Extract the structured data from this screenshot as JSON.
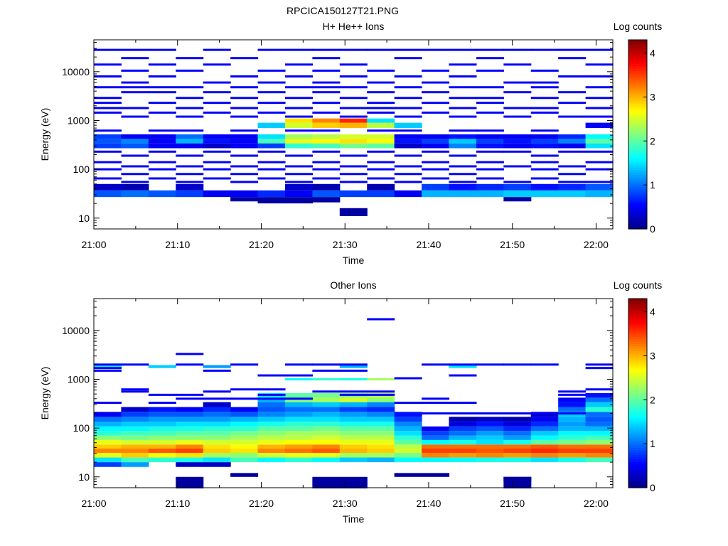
{
  "figure": {
    "title": "RPCICA150127T21.PNG"
  },
  "chart_data": [
    {
      "type": "heatmap",
      "title": "H+ He++ Ions",
      "xlabel": "Time",
      "ylabel": "Energy (eV)",
      "x_ticks": [
        "21:00",
        "21:10",
        "21:20",
        "21:30",
        "21:40",
        "21:50",
        "22:00"
      ],
      "y_ticks": [
        "10",
        "100",
        "1000",
        "10000"
      ],
      "ylim": [
        6,
        45000
      ],
      "yscale": "log",
      "colorbar": {
        "label": "Log counts",
        "min": 0,
        "max": 4.3,
        "ticks": [
          "0",
          "1",
          "2",
          "3",
          "4"
        ]
      },
      "time_bins": 19,
      "bands": [
        [
          27,
          37,
          [
            0.9,
            1.0,
            0.9,
            0.8,
            0.5,
            0.5,
            0.7,
            0.5,
            0.9,
            0.8,
            0.8,
            0.5,
            1.3,
            1.3,
            1.3,
            1.4,
            1.4,
            1.4,
            1.3
          ]
        ],
        [
          37,
          50,
          [
            0.3,
            0.2,
            0,
            0.3,
            0,
            0,
            0,
            0.3,
            0.2,
            0,
            0.2,
            0,
            0.8,
            0.6,
            0.7,
            0.8,
            0.6,
            0.7,
            0.9
          ]
        ],
        [
          270,
          340,
          [
            0.8,
            0.9,
            0.5,
            0.5,
            0.3,
            0.5,
            0.8,
            1.8,
            1.9,
            2.1,
            2.0,
            0.3,
            0.5,
            1.1,
            0.6,
            0.5,
            0.6,
            0.5,
            1.5
          ]
        ],
        [
          340,
          420,
          [
            0.9,
            1.1,
            0.5,
            1.3,
            0.6,
            0.5,
            1.9,
            2.6,
            2.7,
            2.8,
            2.7,
            0.6,
            0.8,
            1.4,
            0.8,
            0.6,
            0.8,
            1.1,
            2.0
          ]
        ],
        [
          420,
          520,
          [
            0.8,
            0.5,
            0.5,
            1.0,
            0.5,
            0.5,
            1.5,
            2.3,
            2.4,
            2.5,
            2.5,
            0.5,
            0.5,
            0.6,
            0.5,
            0.5,
            0.5,
            0.7,
            1.6
          ]
        ],
        [
          700,
          900,
          [
            0,
            0,
            0,
            0,
            0,
            0,
            1.4,
            2.5,
            2.9,
            3.0,
            2.4,
            1.4,
            0,
            0,
            0,
            0,
            0,
            0,
            0.5
          ]
        ],
        [
          900,
          1100,
          [
            0,
            0,
            0,
            0,
            0,
            0,
            0,
            2.8,
            3.2,
            3.6,
            1.5,
            0,
            0,
            0,
            0,
            0,
            0,
            0,
            0
          ]
        ]
      ],
      "lines": [
        [
          [
            28000,
            "0,1,2,4,6,7,8,9,10,11,12,13,14,15,16,17,18"
          ],
          [
            19000,
            "1,3,5,8,11,14,17"
          ],
          [
            14000,
            "0,2,4,7,9,13,15,18"
          ],
          [
            10500,
            "1,3,6,8,10,12,14,16"
          ],
          [
            8000,
            "0,2,5,7,9,11,13,17,18"
          ],
          [
            6000,
            "1,4,6,8,10,12,15,16"
          ],
          [
            4800,
            "0,1,2,3,5,7,8,9,11,13,14,16,18"
          ],
          [
            3800,
            "1,2,4,6,8,10,12,15,17"
          ],
          [
            2900,
            "0,3,5,7,9,11,13,14,16,18"
          ],
          [
            2300,
            "0,2,4,6,8,10,12,14,17"
          ],
          [
            1800,
            "0,1,3,5,7,9,10,11,13,15,16,18"
          ],
          [
            1450,
            "0,2,4,6,8,10,12,14,16"
          ],
          [
            1200,
            "1,3,5,7,9,11,13,15,17,18"
          ],
          [
            620,
            "0,2,3,5,7,8,10,11,13,14,16"
          ],
          [
            230,
            "0,2,4,6,8,10,12,14,15,17,18"
          ],
          [
            190,
            "1,3,5,7,9,11,13,16"
          ],
          [
            140,
            "0,2,4,6,8,10,12,14,16,18"
          ],
          [
            115,
            "1,3,5,7,9,11,13,15,17"
          ],
          [
            100,
            "0,2,4,6,8,10,12,14,16,18"
          ],
          [
            80,
            "1,3,5,7,9,11,13,17"
          ],
          [
            65,
            "0,2,4,6,8,10,12,14,16"
          ],
          [
            55,
            "1,3,5,7,9,11,13,15,17,18"
          ]
        ],
        [
          [
            21,
            27,
            "8"
          ],
          [
            20,
            27,
            "6,7"
          ],
          [
            11,
            16,
            "9"
          ],
          [
            22,
            27,
            "5,15"
          ]
        ]
      ]
    },
    {
      "type": "heatmap",
      "title": "Other Ions",
      "xlabel": "Time",
      "ylabel": "Energy (eV)",
      "x_ticks": [
        "21:00",
        "21:10",
        "21:20",
        "21:30",
        "21:40",
        "21:50",
        "22:00"
      ],
      "y_ticks": [
        "10",
        "100",
        "1000",
        "10000"
      ],
      "ylim": [
        6,
        45000
      ],
      "yscale": "log",
      "colorbar": {
        "label": "Log counts",
        "min": 0,
        "max": 4.3,
        "ticks": [
          "0",
          "1",
          "2",
          "3",
          "4"
        ]
      },
      "time_bins": 19,
      "bands": [
        [
          16,
          20,
          [
            0.8,
            1.2,
            0,
            0.3,
            0.3,
            0,
            0,
            0,
            0,
            0,
            0,
            0,
            0,
            0,
            0,
            0,
            0,
            0,
            0
          ]
        ],
        [
          20,
          25,
          [
            1.5,
            1.9,
            1.8,
            1.7,
            1.5,
            1.9,
            1.6,
            1.8,
            1.6,
            1.4,
            1.3,
            1.6,
            1.6,
            1.6,
            1.7,
            1.7,
            1.5,
            1.7,
            1.9
          ]
        ],
        [
          25,
          31,
          [
            2.6,
            2.9,
            2.7,
            2.8,
            2.3,
            2.2,
            2.5,
            2.6,
            2.6,
            2.3,
            2.3,
            2.1,
            3.2,
            3.1,
            3.2,
            3.1,
            3.2,
            3.1,
            3.2
          ]
        ],
        [
          31,
          38,
          [
            3.2,
            3.2,
            3.4,
            3.5,
            2.9,
            2.8,
            3.2,
            3.3,
            3.4,
            3.0,
            2.9,
            2.5,
            3.5,
            3.5,
            3.4,
            3.5,
            3.6,
            3.5,
            3.5
          ]
        ],
        [
          38,
          46,
          [
            2.9,
            3.0,
            3.0,
            3.2,
            2.8,
            2.7,
            3.0,
            3.1,
            3.2,
            2.9,
            2.8,
            2.4,
            3.3,
            3.3,
            3.3,
            3.3,
            3.4,
            3.3,
            3.3
          ]
        ],
        [
          46,
          57,
          [
            2.6,
            2.5,
            2.5,
            2.6,
            2.5,
            2.5,
            2.6,
            2.7,
            2.7,
            2.6,
            2.6,
            2.0,
            1.6,
            1.7,
            1.5,
            1.7,
            2.0,
            2.1,
            2.2
          ]
        ],
        [
          57,
          70,
          [
            2.2,
            2.1,
            2.2,
            2.2,
            2.2,
            2.3,
            2.4,
            2.4,
            2.5,
            2.4,
            2.4,
            1.8,
            1.0,
            1.3,
            1.4,
            1.2,
            1.6,
            1.8,
            1.9
          ]
        ],
        [
          70,
          87,
          [
            1.8,
            1.9,
            1.9,
            2.0,
            2.0,
            2.1,
            2.2,
            2.3,
            2.3,
            2.2,
            2.2,
            1.5,
            0.8,
            1.0,
            1.2,
            1.0,
            1.4,
            1.6,
            1.6
          ]
        ],
        [
          87,
          108,
          [
            1.6,
            1.6,
            1.7,
            1.7,
            1.8,
            1.8,
            2.0,
            2.0,
            2.1,
            2.0,
            2.0,
            1.3,
            0.5,
            0.8,
            0.9,
            0.7,
            1.0,
            1.3,
            1.3
          ]
        ],
        [
          108,
          135,
          [
            1.3,
            1.4,
            1.4,
            1.5,
            1.5,
            1.6,
            1.7,
            1.8,
            1.8,
            1.7,
            1.7,
            1.1,
            0,
            0.4,
            0.6,
            0.4,
            0.7,
            1.2,
            1.0
          ]
        ],
        [
          135,
          170,
          [
            1.0,
            1.1,
            1.2,
            1.2,
            1.2,
            1.3,
            1.4,
            1.5,
            1.5,
            1.4,
            1.4,
            0.8,
            0,
            0.2,
            0.3,
            0.2,
            0.5,
            1.3,
            0.9
          ]
        ],
        [
          170,
          215,
          [
            0.5,
            0.8,
            0.9,
            0.9,
            1.0,
            0.9,
            1.1,
            1.2,
            1.3,
            1.2,
            1.1,
            0.6,
            0,
            0,
            0,
            0,
            0.3,
            1.4,
            1.0
          ]
        ],
        [
          215,
          270,
          [
            0,
            0.3,
            0.6,
            0.5,
            0.7,
            0.5,
            0.9,
            1.0,
            1.0,
            0.8,
            0.7,
            0,
            0,
            0,
            0,
            0,
            0,
            1.0,
            1.8
          ]
        ],
        [
          270,
          340,
          [
            0,
            0,
            0,
            0,
            0.3,
            0,
            1.0,
            1.3,
            1.4,
            1.3,
            1.1,
            0,
            0,
            0,
            0,
            0,
            0,
            0.6,
            1.4
          ]
        ],
        [
          340,
          420,
          [
            0,
            0,
            0,
            0,
            0,
            0,
            1.3,
            2.2,
            2.3,
            2.5,
            2.2,
            0,
            0,
            0,
            0,
            0,
            0,
            0.5,
            1.0
          ]
        ],
        [
          420,
          520,
          [
            0,
            0,
            0,
            0,
            0,
            0,
            1.6,
            2.0,
            2.1,
            2.2,
            2.4,
            0,
            0,
            0,
            0,
            0,
            0,
            0,
            0.6
          ]
        ],
        [
          950,
          1050,
          [
            0,
            0,
            0,
            0,
            0,
            0,
            0,
            1.6,
            1.8,
            1.7,
            2.3,
            0,
            0,
            0,
            0,
            0,
            0,
            0,
            0
          ]
        ],
        [
          1700,
          1950,
          [
            1.6,
            0,
            1.4,
            0,
            1.2,
            0,
            0,
            0,
            0,
            1.3,
            0,
            0,
            0,
            1.5,
            0,
            0,
            0,
            0,
            0
          ]
        ]
      ],
      "lines": [
        [
          [
            2000,
            "0,1,3,5,7,8,9,12,13,14,15,16,18"
          ],
          [
            1700,
            "0,18"
          ],
          [
            1500,
            "0,4,8,9"
          ],
          [
            1200,
            "6,7,13"
          ],
          [
            1050,
            "11"
          ],
          [
            620,
            "1,5,6,18"
          ],
          [
            560,
            "1,4,8,9,10,17"
          ],
          [
            480,
            "2,3,6,9,10,17"
          ],
          [
            400,
            "3,4,5,6,7,12"
          ],
          [
            330,
            "0,2,11,12,13"
          ],
          [
            200,
            "12,13,14,15,16,17"
          ],
          [
            3300,
            "3"
          ],
          [
            17000,
            "10"
          ]
        ],
        [
          [
            10,
            12,
            "5"
          ],
          [
            8,
            10,
            "15"
          ],
          [
            5.8,
            10,
            "3,8,9,15"
          ],
          [
            10,
            12,
            "11,12"
          ]
        ]
      ]
    }
  ]
}
